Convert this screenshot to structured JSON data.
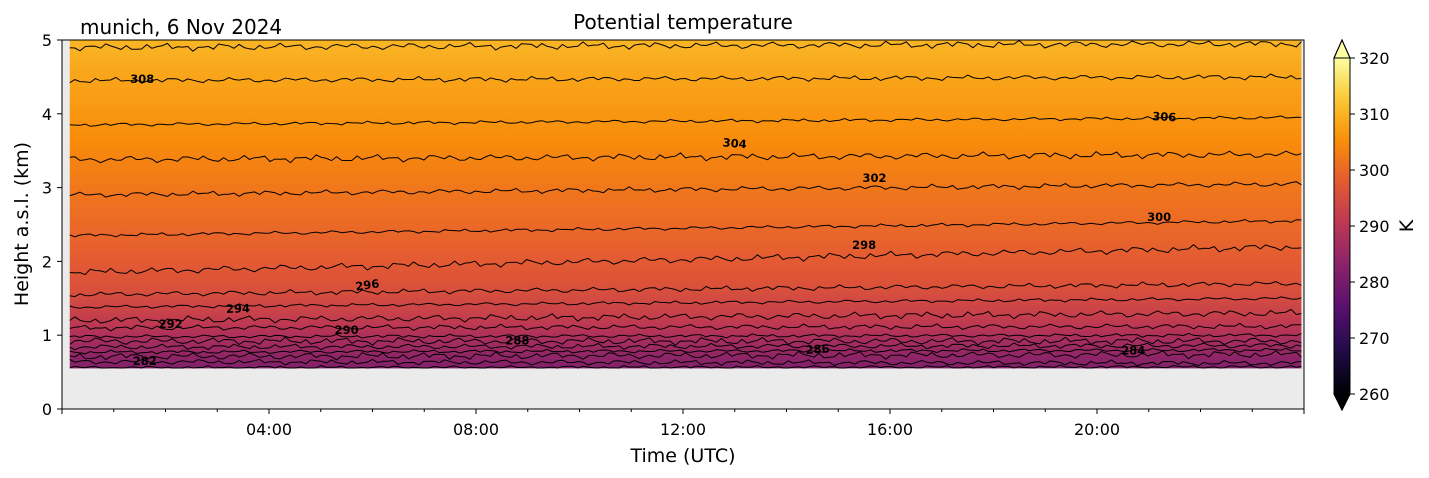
{
  "chart_data": {
    "type": "heatmap",
    "title": "Potential temperature",
    "subtitle": "munich, 6 Nov 2024",
    "xlabel": "Time (UTC)",
    "ylabel": "Height a.s.l. (km)",
    "xlim_hours": [
      0,
      24
    ],
    "ylim_km": [
      0,
      5
    ],
    "xticks": [
      {
        "hour": 4,
        "label": "04:00"
      },
      {
        "hour": 8,
        "label": "08:00"
      },
      {
        "hour": 12,
        "label": "12:00"
      },
      {
        "hour": 16,
        "label": "16:00"
      },
      {
        "hour": 20,
        "label": "20:00"
      }
    ],
    "yticks": [
      {
        "value": 0,
        "label": "0"
      },
      {
        "value": 1,
        "label": "1"
      },
      {
        "value": 2,
        "label": "2"
      },
      {
        "value": 3,
        "label": "3"
      },
      {
        "value": 4,
        "label": "4"
      },
      {
        "value": 5,
        "label": "5"
      }
    ],
    "data_extent": {
      "time_start": 0.15,
      "time_end": 23.95,
      "height_bottom_km": 0.55,
      "height_top_km": 5.0
    },
    "no_data_color": "#ebebeb",
    "colorbar": {
      "label": "K",
      "range": [
        260,
        320
      ],
      "extend": "both",
      "colormap": "inferno",
      "ticks": [
        {
          "value": 260,
          "label": "260"
        },
        {
          "value": 270,
          "label": "270"
        },
        {
          "value": 280,
          "label": "280"
        },
        {
          "value": 290,
          "label": "290"
        },
        {
          "value": 300,
          "label": "300"
        },
        {
          "value": 310,
          "label": "310"
        },
        {
          "value": 320,
          "label": "320"
        }
      ]
    },
    "contour_levels": [
      {
        "value": 282,
        "h0": 0.56,
        "h1": 0.57
      },
      {
        "value": 283,
        "h0": 0.64,
        "h1": 0.62
      },
      {
        "value": 284,
        "h0": 0.71,
        "h1": 0.74
      },
      {
        "value": 285,
        "h0": 0.77,
        "h1": 0.8
      },
      {
        "value": 286,
        "h0": 0.84,
        "h1": 0.86
      },
      {
        "value": 287,
        "h0": 0.92,
        "h1": 0.92
      },
      {
        "value": 288,
        "h0": 0.98,
        "h1": 1.0
      },
      {
        "value": 290,
        "h0": 1.1,
        "h1": 1.12
      },
      {
        "value": 292,
        "h0": 1.2,
        "h1": 1.3
      },
      {
        "value": 294,
        "h0": 1.38,
        "h1": 1.5
      },
      {
        "value": 296,
        "h0": 1.55,
        "h1": 1.7
      },
      {
        "value": 298,
        "h0": 1.85,
        "h1": 2.2
      },
      {
        "value": 300,
        "h0": 2.35,
        "h1": 2.55
      },
      {
        "value": 302,
        "h0": 2.9,
        "h1": 3.05
      },
      {
        "value": 304,
        "h0": 3.38,
        "h1": 3.45
      },
      {
        "value": 306,
        "h0": 3.85,
        "h1": 3.95
      },
      {
        "value": 308,
        "h0": 4.45,
        "h1": 4.5
      },
      {
        "value": 310,
        "h0": 4.9,
        "h1": 4.95
      }
    ],
    "contour_labels": [
      {
        "text": "282",
        "hour": 1.6,
        "height": 0.65,
        "angle": 0
      },
      {
        "text": "284",
        "hour": 20.7,
        "height": 0.79,
        "angle": 0
      },
      {
        "text": "286",
        "hour": 14.6,
        "height": 0.81,
        "angle": -3
      },
      {
        "text": "288",
        "hour": 8.8,
        "height": 0.93,
        "angle": 0
      },
      {
        "text": "290",
        "hour": 5.5,
        "height": 1.07,
        "angle": 0
      },
      {
        "text": "292",
        "hour": 2.1,
        "height": 1.15,
        "angle": 0
      },
      {
        "text": "294",
        "hour": 3.4,
        "height": 1.36,
        "angle": -2
      },
      {
        "text": "296",
        "hour": 5.9,
        "height": 1.68,
        "angle": -8
      },
      {
        "text": "298",
        "hour": 15.5,
        "height": 2.22,
        "angle": 0
      },
      {
        "text": "300",
        "hour": 21.2,
        "height": 2.6,
        "angle": 0
      },
      {
        "text": "302",
        "hour": 15.7,
        "height": 3.13,
        "angle": 0
      },
      {
        "text": "304",
        "hour": 13.0,
        "height": 3.6,
        "angle": 5
      },
      {
        "text": "306",
        "hour": 21.3,
        "height": 3.96,
        "angle": 3
      },
      {
        "text": "308",
        "hour": 1.55,
        "height": 4.47,
        "angle": 0
      }
    ]
  }
}
